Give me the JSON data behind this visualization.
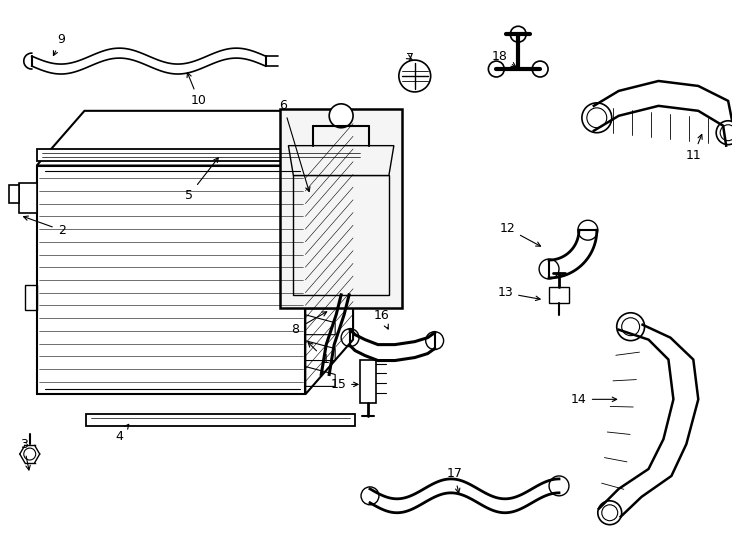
{
  "bg_color": "#ffffff",
  "line_color": "#000000",
  "text_color": "#000000",
  "figsize": [
    7.34,
    5.4
  ],
  "dpi": 100
}
